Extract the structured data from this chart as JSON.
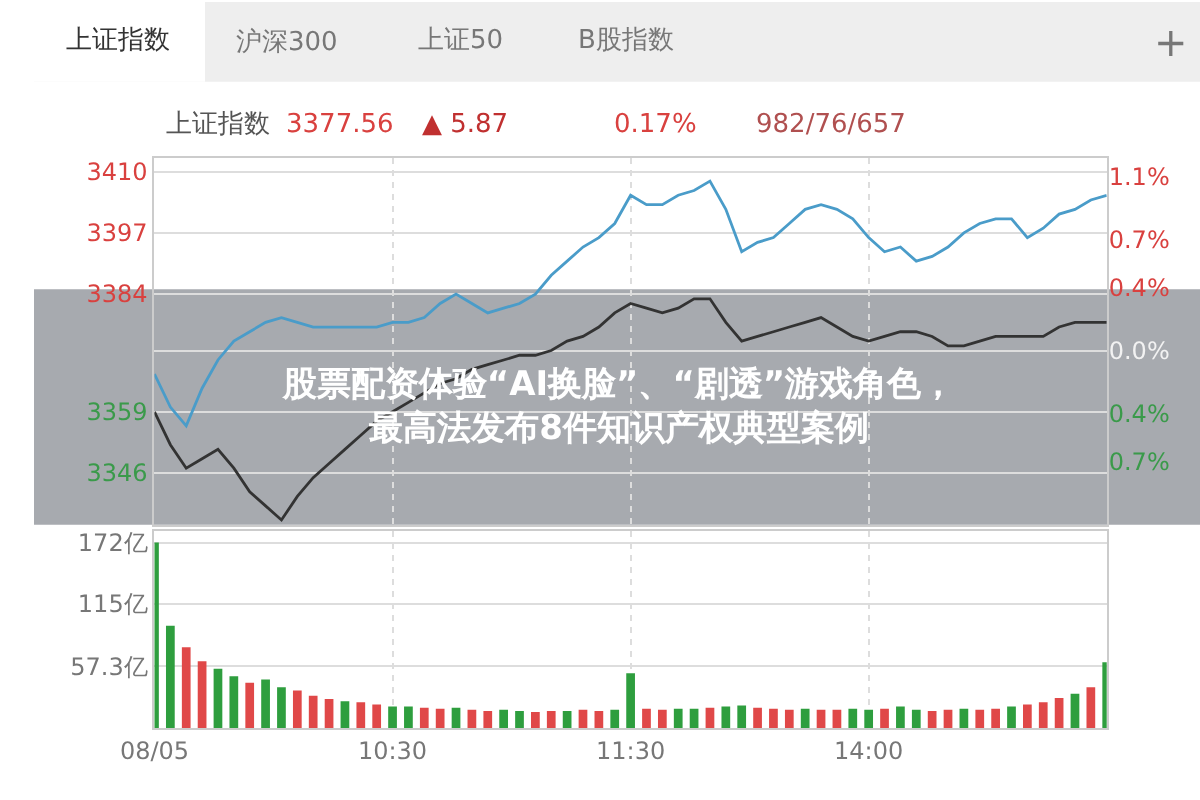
{
  "chart_data": [
    {
      "type": "line",
      "title": "股票配资体验“AI换脸”、“剧透”游戏角色，最高法发布8件知识产权典型案例",
      "annotations": [
        "上证指数",
        "沪深300",
        "上证50",
        "B股指数",
        "+",
        "上证指数",
        "3377.56",
        "▲ 5.87",
        "0.17%",
        "982/76/657"
      ],
      "categories": [
        null,
        null,
        null,
        null,
        null,
        null,
        null,
        null,
        null,
        null,
        null,
        null,
        null,
        null,
        null,
        null,
        null,
        null,
        null,
        null,
        null,
        null,
        null,
        null,
        null,
        null,
        null,
        null,
        null,
        null,
        null,
        null,
        null,
        null,
        null,
        null,
        null,
        null,
        null,
        null,
        null,
        null,
        null,
        null,
        null,
        null,
        null,
        null,
        null,
        null,
        null,
        null,
        null,
        null,
        null,
        null,
        null,
        null,
        null,
        null,
        null
      ],
      "ylim": [
        3335,
        3413
      ],
      "yticks": [
        3346,
        3359,
        {
          "value": 3372,
          "label": null
        },
        3384,
        3397,
        3410
      ],
      "y2lim": [
        -1.1,
        1.22
      ],
      "y2ticks": [
        {
          "value": -0.7,
          "label": "0.7%"
        },
        {
          "value": -0.4,
          "label": "0.4%"
        },
        {
          "value": 0,
          "label": "0.0%"
        },
        {
          "value": 0.4,
          "label": "0.4%"
        },
        {
          "value": 0.7,
          "label": "0.7%"
        },
        {
          "value": 1.1,
          "label": "1.1%"
        }
      ],
      "tick_labels": "y",
      "grid": true,
      "series": [
        {
          "color": "#4a9cc9",
          "values": [
            3367,
            3360,
            3356,
            3364,
            3370,
            3374,
            3376,
            3378,
            3379,
            3378,
            3377,
            3377,
            3377,
            3377,
            3377,
            3378,
            3378,
            3379,
            3382,
            3384,
            3382,
            3380,
            3381,
            3382,
            3384,
            3388,
            3391,
            3394,
            3396,
            3399,
            3405,
            3403,
            3403,
            3405,
            3406,
            3408,
            3402,
            3393,
            3395,
            3396,
            3399,
            3402,
            3403,
            3402,
            3400,
            3396,
            3393,
            3394,
            3391,
            3392,
            3394,
            3397,
            3399,
            3400,
            3400,
            3396,
            3398,
            3401,
            3402,
            3404,
            3405
          ]
        },
        {
          "color": "#333333",
          "values": [
            3359,
            3352,
            3347,
            3349,
            3351,
            3347,
            3342,
            3339,
            3336,
            3341,
            3345,
            3348,
            3351,
            3354,
            3357,
            3359,
            3361,
            3363,
            3365,
            3366,
            3368,
            3369,
            3370,
            3371,
            3371,
            3372,
            3374,
            3375,
            3377,
            3380,
            3382,
            3381,
            3380,
            3381,
            3383,
            3383,
            3378,
            3374,
            3375,
            3376,
            3377,
            3378,
            3379,
            3377,
            3375,
            3374,
            3375,
            3376,
            3376,
            3375,
            3373,
            3373,
            3374,
            3375,
            3375,
            3375,
            3375,
            3377,
            3378,
            3378,
            3378
          ]
        }
      ]
    },
    {
      "type": "bar",
      "categories": [
        "08/05",
        null,
        null,
        null,
        null,
        null,
        null,
        null,
        null,
        null,
        null,
        null,
        null,
        null,
        null,
        "10:30",
        null,
        null,
        null,
        null,
        null,
        null,
        null,
        null,
        null,
        null,
        null,
        null,
        null,
        null,
        "11:30",
        null,
        null,
        null,
        null,
        null,
        null,
        null,
        null,
        null,
        null,
        null,
        null,
        null,
        null,
        "14:00",
        null,
        null,
        null,
        null,
        null,
        null,
        null,
        null,
        null,
        null,
        null,
        null,
        null,
        null,
        null
      ],
      "values": [
        172,
        95,
        75,
        62,
        55,
        48,
        42,
        45,
        38,
        35,
        30,
        27,
        25,
        24,
        22,
        20,
        20,
        19,
        18,
        19,
        17,
        16,
        17,
        16,
        15,
        16,
        16,
        17,
        16,
        17,
        51,
        18,
        17,
        18,
        18,
        19,
        20,
        21,
        19,
        18,
        17,
        18,
        17,
        17,
        18,
        17,
        18,
        20,
        17,
        16,
        17,
        18,
        17,
        18,
        20,
        22,
        24,
        28,
        32,
        38,
        61
      ],
      "colors": [
        "#2e9e3e",
        "#2e9e3e",
        "#e04848",
        "#e04848",
        "#2e9e3e",
        "#2e9e3e",
        "#e04848",
        "#2e9e3e",
        "#2e9e3e",
        "#e04848",
        "#e04848",
        "#e04848",
        "#2e9e3e",
        "#e04848",
        "#e04848",
        "#2e9e3e",
        "#2e9e3e",
        "#e04848",
        "#e04848",
        "#2e9e3e",
        "#e04848",
        "#e04848",
        "#2e9e3e",
        "#2e9e3e",
        "#e04848",
        "#e04848",
        "#2e9e3e",
        "#e04848",
        "#e04848",
        "#2e9e3e",
        "#2e9e3e",
        "#e04848",
        "#e04848",
        "#2e9e3e",
        "#2e9e3e",
        "#e04848",
        "#2e9e3e",
        "#2e9e3e",
        "#e04848",
        "#e04848",
        "#e04848",
        "#2e9e3e",
        "#e04848",
        "#e04848",
        "#2e9e3e",
        "#2e9e3e",
        "#e04848",
        "#2e9e3e",
        "#2e9e3e",
        "#e04848",
        "#e04848",
        "#2e9e3e",
        "#e04848",
        "#e04848",
        "#2e9e3e",
        "#e04848",
        "#e04848",
        "#e04848",
        "#2e9e3e",
        "#e04848",
        "#2e9e3e"
      ],
      "ylim": [
        0,
        183
      ],
      "yticks": [
        {
          "value": 57.3,
          "label": "57.3亿"
        },
        {
          "value": 115,
          "label": "115亿"
        },
        {
          "value": 172,
          "label": "172亿"
        }
      ],
      "grid": true
    }
  ]
}
